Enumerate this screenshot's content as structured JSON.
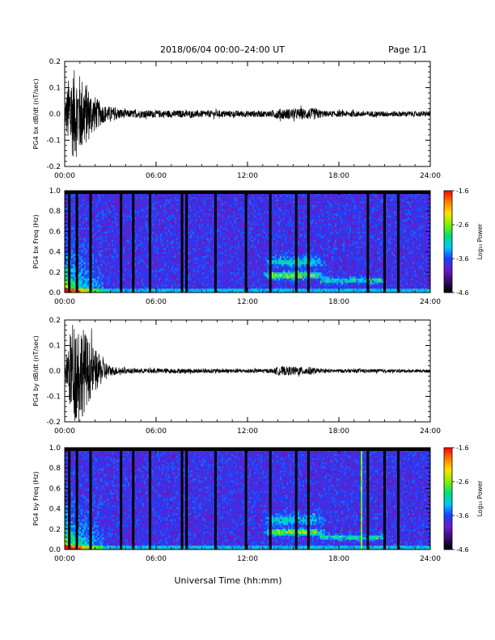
{
  "header": {
    "title": "2018/06/04  00:00–24:00 UT",
    "page": "Page 1/1"
  },
  "footer": {
    "xlabel": "Universal Time (hh:mm)"
  },
  "colors": {
    "background": "#ffffff",
    "axes": "#000000",
    "spectrogram_floor": "#1a0530",
    "colormap": [
      "#000000",
      "#3a0a6e",
      "#6a1cc8",
      "#1a40ff",
      "#00c8ff",
      "#00e070",
      "#80f000",
      "#ffe000",
      "#ff8000",
      "#ff0000"
    ]
  },
  "chart_data": [
    {
      "id": "bx-dbdt",
      "type": "line",
      "ylabel": "PG4 bx dB/dt (nT/sec)",
      "xlim": [
        0,
        24
      ],
      "ylim": [
        -0.2,
        0.2
      ],
      "x_ticks": [
        "00:00",
        "06:00",
        "12:00",
        "18:00",
        "24:00"
      ],
      "y_ticks": [
        "0.2",
        "0.1",
        "0.0",
        "-0.1",
        "-0.2"
      ],
      "envelope": [
        {
          "t": 0.0,
          "amp": 0.03
        },
        {
          "t": 0.3,
          "amp": 0.16
        },
        {
          "t": 0.7,
          "amp": 0.17
        },
        {
          "t": 1.2,
          "amp": 0.14
        },
        {
          "t": 1.8,
          "amp": 0.08
        },
        {
          "t": 2.5,
          "amp": 0.035
        },
        {
          "t": 4.0,
          "amp": 0.015
        },
        {
          "t": 13.5,
          "amp": 0.012
        },
        {
          "t": 14.0,
          "amp": 0.02
        },
        {
          "t": 16.5,
          "amp": 0.022
        },
        {
          "t": 17.0,
          "amp": 0.012
        },
        {
          "t": 24.0,
          "amp": 0.01
        }
      ]
    },
    {
      "id": "bx-spec",
      "type": "heatmap",
      "ylabel": "PG4 bx Freq (Hz)",
      "xlim": [
        0,
        24
      ],
      "ylim": [
        0,
        1.0
      ],
      "x_ticks": [
        "00:00",
        "06:00",
        "12:00",
        "18:00",
        "24:00"
      ],
      "y_ticks": [
        "1.0",
        "0.8",
        "0.6",
        "0.4",
        "0.2",
        "0.0"
      ],
      "colorbar": {
        "label": "Log₁₀ Power",
        "range": [
          -4.6,
          -1.6
        ],
        "ticks": [
          "-1.6",
          "-2.6",
          "-3.6",
          "-4.6"
        ]
      },
      "gaps_hours": [
        0.3,
        0.8,
        1.7,
        3.7,
        4.5,
        5.6,
        7.7,
        8.0,
        9.9,
        11.9,
        13.5,
        15.2,
        16.0,
        19.9,
        21.0,
        21.9
      ]
    },
    {
      "id": "by-dbdt",
      "type": "line",
      "ylabel": "PG4 by dB/dt (nT/sec)",
      "xlim": [
        0,
        24
      ],
      "ylim": [
        -0.2,
        0.2
      ],
      "x_ticks": [
        "00:00",
        "06:00",
        "12:00",
        "18:00",
        "24:00"
      ],
      "y_ticks": [
        "0.2",
        "0.1",
        "0.0",
        "-0.1",
        "-0.2"
      ],
      "envelope": [
        {
          "t": 0.0,
          "amp": 0.03
        },
        {
          "t": 0.5,
          "amp": 0.2
        },
        {
          "t": 1.0,
          "amp": 0.2
        },
        {
          "t": 1.6,
          "amp": 0.12
        },
        {
          "t": 2.3,
          "amp": 0.06
        },
        {
          "t": 3.0,
          "amp": 0.02
        },
        {
          "t": 4.0,
          "amp": 0.01
        },
        {
          "t": 13.7,
          "amp": 0.008
        },
        {
          "t": 14.0,
          "amp": 0.018
        },
        {
          "t": 16.2,
          "amp": 0.016
        },
        {
          "t": 16.7,
          "amp": 0.008
        },
        {
          "t": 24.0,
          "amp": 0.006
        }
      ]
    },
    {
      "id": "by-spec",
      "type": "heatmap",
      "ylabel": "PG4 by Freq (Hz)",
      "xlim": [
        0,
        24
      ],
      "ylim": [
        0,
        1.0
      ],
      "x_ticks": [
        "00:00",
        "06:00",
        "12:00",
        "18:00",
        "24:00"
      ],
      "y_ticks": [
        "1.0",
        "0.8",
        "0.6",
        "0.4",
        "0.2",
        "0.0"
      ],
      "colorbar": {
        "label": "Log₁₀ Power",
        "range": [
          -4.6,
          -1.6
        ],
        "ticks": [
          "-1.6",
          "-2.6",
          "-3.6",
          "-4.6"
        ]
      },
      "gaps_hours": [
        0.3,
        0.8,
        1.7,
        3.7,
        4.5,
        5.6,
        7.7,
        8.0,
        9.9,
        11.9,
        13.5,
        15.2,
        16.0,
        19.9,
        21.0,
        21.9
      ],
      "spike_hour": 19.5
    }
  ]
}
